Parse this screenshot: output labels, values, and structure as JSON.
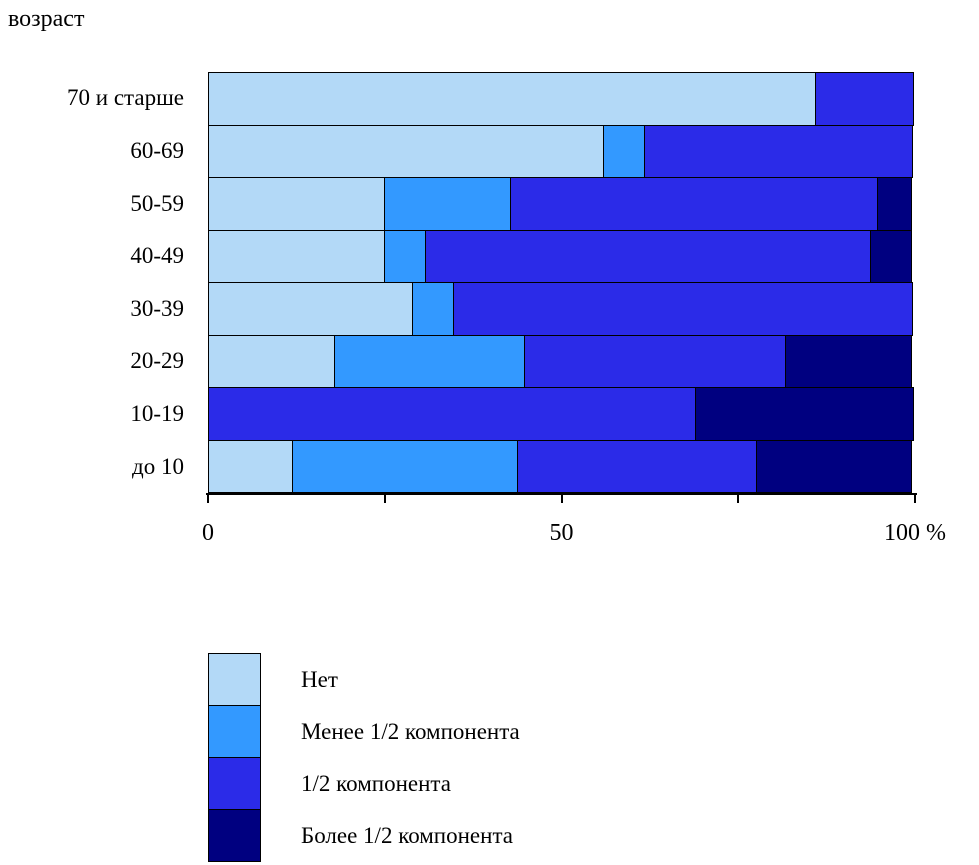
{
  "title": "возраст",
  "axis": {
    "unit_suffix": "%",
    "ticks": [
      {
        "value": 0,
        "label": "0"
      },
      {
        "value": 25,
        "label": ""
      },
      {
        "value": 50,
        "label": "50"
      },
      {
        "value": 75,
        "label": ""
      },
      {
        "value": 100,
        "label": "100 %"
      }
    ]
  },
  "chart_data": {
    "type": "bar",
    "orientation": "horizontal",
    "stacked": true,
    "title": "возраст",
    "xlabel": "%",
    "xlim": [
      0,
      100
    ],
    "grid": false,
    "legend_position": "bottom-left",
    "categories": [
      "70 и старше",
      "60-69",
      "50-59",
      "40-49",
      "30-39",
      "20-29",
      "10-19",
      "до 10"
    ],
    "series": [
      {
        "name": "Нет",
        "color": "#b3d9f7",
        "values": [
          86,
          56,
          25,
          25,
          29,
          18,
          0,
          12
        ]
      },
      {
        "name": "Менее 1/2 компонента",
        "color": "#3399ff",
        "values": [
          0,
          6,
          18,
          6,
          6,
          27,
          0,
          32
        ]
      },
      {
        "name": "1/2 компонента",
        "color": "#2b2be8",
        "values": [
          14,
          38,
          52,
          63,
          65,
          37,
          69,
          34
        ]
      },
      {
        "name": "Более 1/2 компонента",
        "color": "#000080",
        "values": [
          0,
          0,
          5,
          6,
          0,
          18,
          31,
          22
        ]
      }
    ]
  }
}
